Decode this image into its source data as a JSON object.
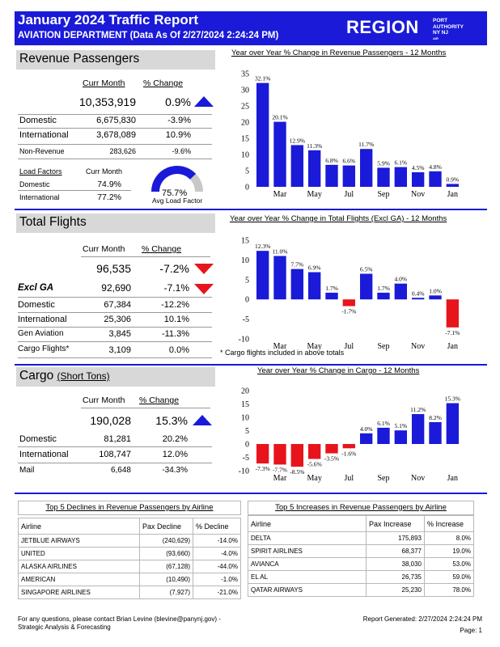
{
  "header": {
    "title": "January 2024 Traffic Report",
    "subtitle": "AVIATION DEPARTMENT (Data As Of 2/27/2024 2:24:24 PM)",
    "region": "REGION",
    "logo_lines": [
      "PORT",
      "AUTHORITY",
      "NY NJ",
      "AIR"
    ]
  },
  "revenue": {
    "section_title": "Revenue Passengers",
    "col_curr": "Curr Month",
    "col_change": "% Change",
    "total_value": "10,353,919",
    "total_change": "0.9%",
    "rows": [
      {
        "label": "Domestic",
        "value": "6,675,830",
        "change": "-3.9%"
      },
      {
        "label": "International",
        "value": "3,678,089",
        "change": "10.9%"
      },
      {
        "label": "Non-Revenue",
        "value": "283,626",
        "change": "-9.6%"
      }
    ],
    "load_factors_label": "Load Factors",
    "load_curr_label": "Curr Month",
    "load_rows": [
      {
        "label": "Domestic",
        "value": "74.9%"
      },
      {
        "label": "International",
        "value": "77.2%"
      }
    ],
    "gauge_value": "75.7%",
    "gauge_label": "Avg Load Factor",
    "gauge_fraction": 0.757
  },
  "flights": {
    "section_title": "Total Flights",
    "col_curr": "Curr Month",
    "col_change": "% Change",
    "total_value": "96,535",
    "total_change": "-7.2%",
    "excl_label": "Excl GA",
    "excl_value": "92,690",
    "excl_change": "-7.1%",
    "rows": [
      {
        "label": "Domestic",
        "value": "67,384",
        "change": "-12.2%"
      },
      {
        "label": "International",
        "value": "25,306",
        "change": "10.1%"
      },
      {
        "label": "Gen Aviation",
        "value": "3,845",
        "change": "-11.3%"
      },
      {
        "label": "Cargo Flights*",
        "value": "3,109",
        "change": "0.0%"
      }
    ],
    "footnote": "* Cargo flights included in above totals"
  },
  "cargo": {
    "section_title": "Cargo",
    "section_unit": "(Short Tons)",
    "col_curr": "Curr Month",
    "col_change": "% Change",
    "total_value": "190,028",
    "total_change": "15.3%",
    "rows": [
      {
        "label": "Domestic",
        "value": "81,281",
        "change": "20.2%"
      },
      {
        "label": "International",
        "value": "108,747",
        "change": "12.0%"
      },
      {
        "label": "Mail",
        "value": "6,648",
        "change": "-34.3%"
      }
    ]
  },
  "chart_data": [
    {
      "type": "bar",
      "title": "Year over Year % Change in Revenue Passengers - 12 Months",
      "values": [
        32.1,
        20.1,
        12.9,
        11.3,
        6.8,
        6.6,
        11.7,
        5.9,
        6.1,
        4.5,
        4.8,
        0.9
      ],
      "labels": [
        "32.1%",
        "20.1%",
        "12.9%",
        "11.3%",
        "6.8%",
        "6.6%",
        "11.7%",
        "5.9%",
        "6.1%",
        "4.5%",
        "4.8%",
        "0.9%"
      ],
      "tick_labels": [
        "Mar",
        "May",
        "Jul",
        "Sep",
        "Nov",
        "Jan"
      ],
      "tick_positions": [
        1,
        3,
        5,
        7,
        9,
        11
      ],
      "ylim": [
        0,
        35
      ],
      "yticks": [
        0,
        5,
        10,
        15,
        20,
        25,
        30,
        35
      ],
      "colors": {
        "pos": "#1a1ad8",
        "neg": "#e8141c"
      }
    },
    {
      "type": "bar",
      "title": "Year over Year % Change in Total Flights (Excl GA) - 12 Months",
      "values": [
        12.3,
        11.0,
        7.7,
        6.9,
        1.7,
        -1.7,
        6.5,
        1.7,
        4.0,
        0.4,
        1.0,
        -7.1
      ],
      "labels": [
        "12.3%",
        "11.0%",
        "7.7%",
        "6.9%",
        "1.7%",
        "-1.7%",
        "6.5%",
        "1.7%",
        "4.0%",
        "0.4%",
        "1.0%",
        "-7.1%"
      ],
      "tick_labels": [
        "Mar",
        "May",
        "Jul",
        "Sep",
        "Nov",
        "Jan"
      ],
      "tick_positions": [
        1,
        3,
        5,
        7,
        9,
        11
      ],
      "ylim": [
        -10,
        15
      ],
      "yticks": [
        -10,
        -5,
        0,
        5,
        10,
        15
      ],
      "colors": {
        "pos": "#1a1ad8",
        "neg": "#e8141c"
      }
    },
    {
      "type": "bar",
      "title": "Year over Year % Change in Cargo - 12 Months",
      "values": [
        -7.3,
        -7.7,
        -8.5,
        -5.6,
        -3.5,
        -1.6,
        4.0,
        6.1,
        5.1,
        11.2,
        8.2,
        15.3
      ],
      "labels": [
        "-7.3%",
        "-7.7%",
        "-8.5%",
        "-5.6%",
        "-3.5%",
        "-1.6%",
        "4.0%",
        "6.1%",
        "5.1%",
        "11.2%",
        "8.2%",
        "15.3%"
      ],
      "tick_labels": [
        "Mar",
        "May",
        "Jul",
        "Sep",
        "Nov",
        "Jan"
      ],
      "tick_positions": [
        1,
        3,
        5,
        7,
        9,
        11
      ],
      "ylim": [
        -10,
        20
      ],
      "yticks": [
        -10,
        -5,
        0,
        5,
        10,
        15,
        20
      ],
      "colors": {
        "pos": "#1a1ad8",
        "neg": "#e8141c"
      }
    }
  ],
  "declines": {
    "title": "Top 5 Declines in Revenue Passengers by Airline",
    "headers": [
      "Airline",
      "Pax Decline",
      "% Decline"
    ],
    "rows": [
      [
        "JETBLUE AIRWAYS",
        "(240,629)",
        "-14.0%"
      ],
      [
        "UNITED",
        "(93,660)",
        "-4.0%"
      ],
      [
        "ALASKA AIRLINES",
        "(67,128)",
        "-44.0%"
      ],
      [
        "AMERICAN",
        "(10,490)",
        "-1.0%"
      ],
      [
        "SINGAPORE AIRLINES",
        "(7,927)",
        "-21.0%"
      ]
    ]
  },
  "increases": {
    "title": "Top 5 Increases in Revenue Passengers by Airline",
    "headers": [
      "Airline",
      "Pax Increase",
      "% Increase"
    ],
    "rows": [
      [
        "DELTA",
        "175,893",
        "8.0%"
      ],
      [
        "SPIRIT AIRLINES",
        "68,377",
        "19.0%"
      ],
      [
        "AVIANCA",
        "38,030",
        "53.0%"
      ],
      [
        "EL AL",
        "26,735",
        "59.0%"
      ],
      [
        "QATAR AIRWAYS",
        "25,230",
        "78.0%"
      ]
    ]
  },
  "footer": {
    "contact": "For any questions, please contact Brian Levine (blevine@panynj.gov) -",
    "contact2": "Strategic Analysis & Forecasting",
    "generated": "Report Generated: 2/27/2024 2:24:24 PM",
    "page": "Page: 1"
  }
}
